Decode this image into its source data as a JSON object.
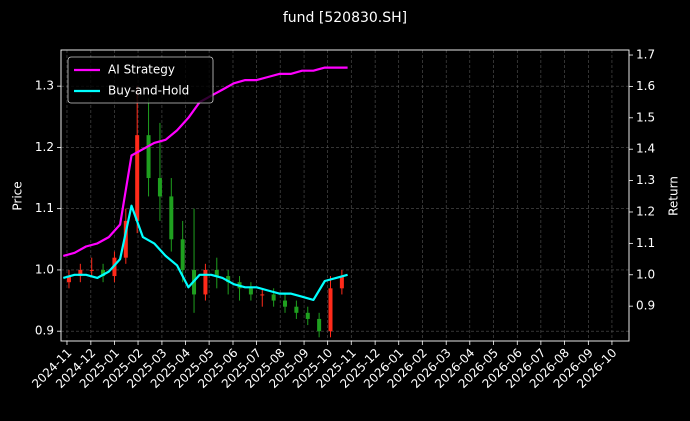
{
  "chart_data": {
    "type": "candlestick_with_returns",
    "title": "fund [520830.SH]",
    "ylabel": "Price",
    "y2label": "Return",
    "xlim": [
      2024.812,
      2026.81
    ],
    "xticks": [
      {
        "value": 2024.833,
        "label": "2024-11"
      },
      {
        "value": 2024.917,
        "label": "2024-12"
      },
      {
        "value": 2025.0,
        "label": "2025-01"
      },
      {
        "value": 2025.083,
        "label": "2025-02"
      },
      {
        "value": 2025.167,
        "label": "2025-03"
      },
      {
        "value": 2025.25,
        "label": "2025-04"
      },
      {
        "value": 2025.333,
        "label": "2025-05"
      },
      {
        "value": 2025.417,
        "label": "2025-06"
      },
      {
        "value": 2025.5,
        "label": "2025-07"
      },
      {
        "value": 2025.583,
        "label": "2025-08"
      },
      {
        "value": 2025.667,
        "label": "2025-09"
      },
      {
        "value": 2025.75,
        "label": "2025-10"
      },
      {
        "value": 2025.833,
        "label": "2025-11"
      },
      {
        "value": 2025.917,
        "label": "2025-12"
      },
      {
        "value": 2026.0,
        "label": "2026-01"
      },
      {
        "value": 2026.083,
        "label": "2026-02"
      },
      {
        "value": 2026.167,
        "label": "2026-03"
      },
      {
        "value": 2026.25,
        "label": "2026-04"
      },
      {
        "value": 2026.333,
        "label": "2026-05"
      },
      {
        "value": 2026.417,
        "label": "2026-06"
      },
      {
        "value": 2026.5,
        "label": "2026-07"
      },
      {
        "value": 2026.583,
        "label": "2026-08"
      },
      {
        "value": 2026.667,
        "label": "2026-09"
      },
      {
        "value": 2026.75,
        "label": "2026-10"
      }
    ],
    "ylim": [
      0.884,
      1.359
    ],
    "yticks": [
      0.9,
      {
        "value": 1,
        "label": "1.0"
      },
      1.1,
      1.2,
      1.3
    ],
    "y2lim": [
      0.789,
      1.716
    ],
    "y2ticks": [
      0.9,
      {
        "value": 1,
        "label": "1.0"
      },
      1.1,
      1.2,
      1.3,
      1.4,
      1.5,
      1.6,
      1.7
    ],
    "grid": true,
    "legend": "upper left",
    "candles": {
      "up_color": "#ff2a1a",
      "down_color": "#1fa01f",
      "x": [
        2024.84,
        2024.88,
        2024.92,
        2024.96,
        2025.0,
        2025.04,
        2025.08,
        2025.12,
        2025.16,
        2025.2,
        2025.24,
        2025.28,
        2025.32,
        2025.36,
        2025.4,
        2025.44,
        2025.48,
        2025.52,
        2025.56,
        2025.6,
        2025.64,
        2025.68,
        2025.72,
        2025.76,
        2025.8
      ],
      "open": [
        0.98,
        0.99,
        1.0,
        1.0,
        0.99,
        1.02,
        1.08,
        1.22,
        1.15,
        1.12,
        1.05,
        1.0,
        0.96,
        1.0,
        0.99,
        0.98,
        0.97,
        0.96,
        0.96,
        0.95,
        0.94,
        0.93,
        0.92,
        0.9,
        0.97
      ],
      "close": [
        0.99,
        1.0,
        1.0,
        0.99,
        1.02,
        1.08,
        1.22,
        1.15,
        1.12,
        1.05,
        1.0,
        0.96,
        1.0,
        0.99,
        0.98,
        0.97,
        0.96,
        0.96,
        0.95,
        0.94,
        0.93,
        0.92,
        0.9,
        0.97,
        0.99
      ],
      "high": [
        1.0,
        1.01,
        1.02,
        1.01,
        1.03,
        1.1,
        1.3,
        1.28,
        1.24,
        1.15,
        1.08,
        1.1,
        1.01,
        1.02,
        1.0,
        0.99,
        0.98,
        0.97,
        0.97,
        0.96,
        0.95,
        0.94,
        0.93,
        0.99,
        1.0
      ],
      "low": [
        0.97,
        0.98,
        0.99,
        0.98,
        0.98,
        1.01,
        1.06,
        1.12,
        1.08,
        1.03,
        0.98,
        0.93,
        0.95,
        0.97,
        0.96,
        0.95,
        0.95,
        0.94,
        0.94,
        0.93,
        0.92,
        0.91,
        0.89,
        0.89,
        0.96
      ]
    },
    "x": [
      2024.82,
      2024.86,
      2024.9,
      2024.94,
      2024.98,
      2025.02,
      2025.06,
      2025.1,
      2025.14,
      2025.18,
      2025.22,
      2025.26,
      2025.3,
      2025.34,
      2025.38,
      2025.42,
      2025.46,
      2025.5,
      2025.54,
      2025.58,
      2025.62,
      2025.66,
      2025.7,
      2025.74,
      2025.78,
      2025.82
    ],
    "series": [
      {
        "name": "AI Strategy",
        "color": "#ff00ff",
        "axis": "y2",
        "values": [
          1.06,
          1.07,
          1.09,
          1.1,
          1.12,
          1.16,
          1.38,
          1.4,
          1.42,
          1.43,
          1.46,
          1.5,
          1.55,
          1.57,
          1.59,
          1.61,
          1.62,
          1.62,
          1.63,
          1.64,
          1.64,
          1.65,
          1.65,
          1.66,
          1.66,
          1.66
        ]
      },
      {
        "name": "Buy-and-Hold",
        "color": "#00ffff",
        "axis": "y2",
        "values": [
          0.99,
          1.0,
          1.0,
          0.99,
          1.01,
          1.05,
          1.22,
          1.12,
          1.1,
          1.06,
          1.03,
          0.96,
          1.0,
          1.0,
          0.99,
          0.97,
          0.96,
          0.96,
          0.95,
          0.94,
          0.94,
          0.93,
          0.92,
          0.98,
          0.99,
          1.0
        ]
      }
    ]
  }
}
